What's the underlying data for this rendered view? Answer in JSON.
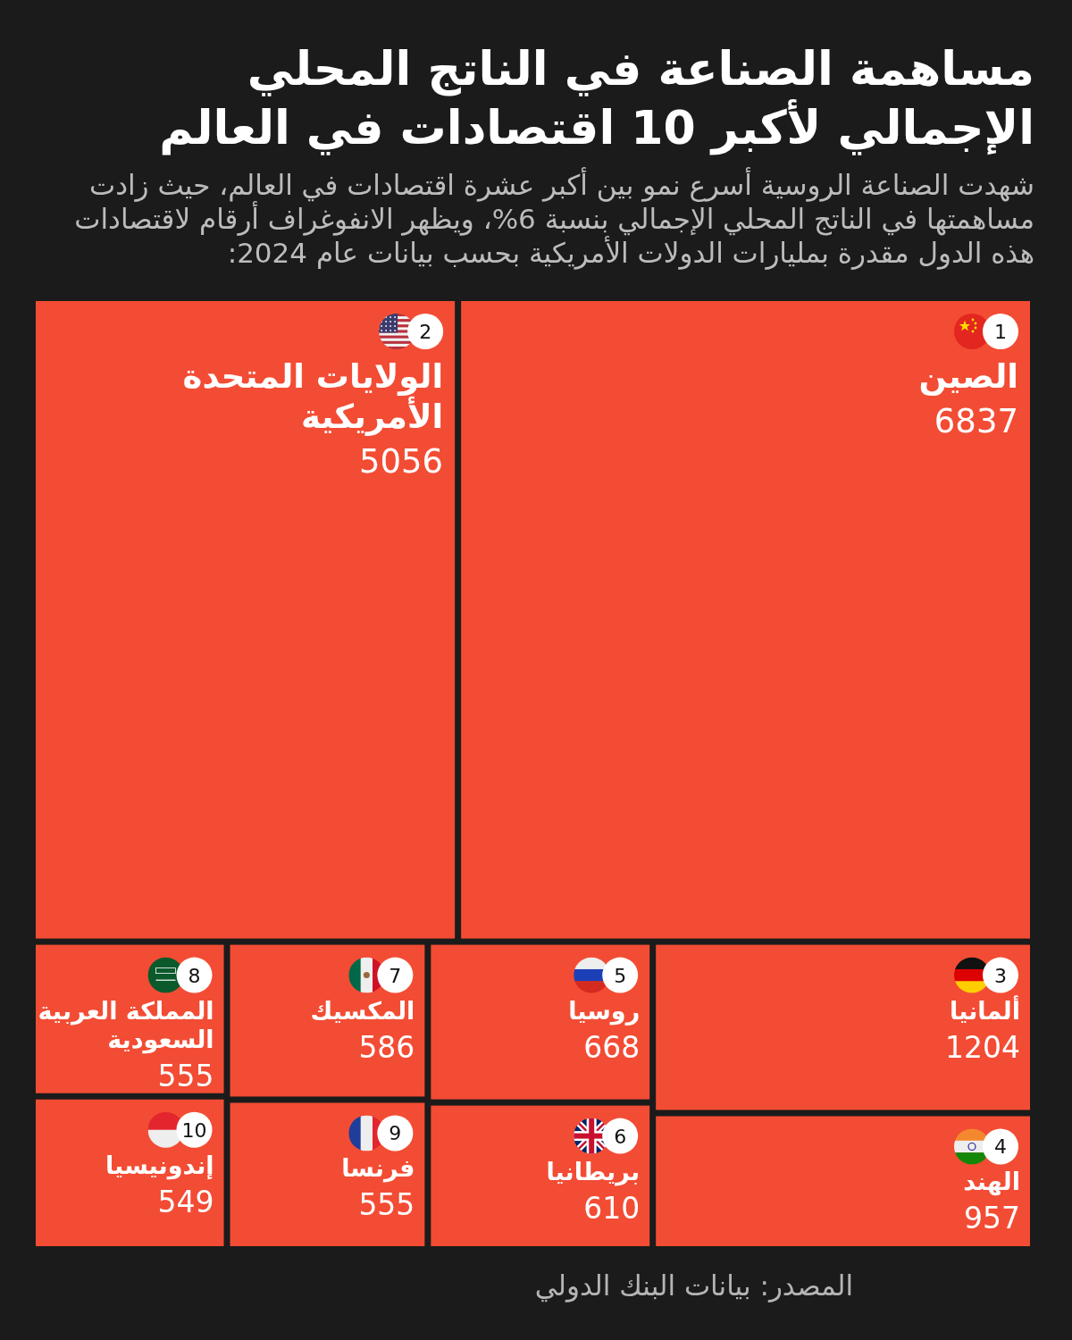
{
  "chart_data": {
    "type": "other",
    "title": "مساهمة الصناعة في الناتج المحلي الإجمالي لأكبر 10 اقتصادات في العالم",
    "subtitle": "شهدت الصناعة الروسية أسرع نمو بين أكبر عشرة اقتصادات في العالم، حيث زادت مساهمتها في الناتج المحلي الإجمالي بنسبة 6%، ويظهر الانفوغراف أرقام لاقتصادات هذه الدول مقدرة بمليارات الدولات الأمريكية بحسب بيانات عام 2024:",
    "categories": [
      "الصين",
      "الولايات المتحدة الأمريكية",
      "ألمانيا",
      "الهند",
      "روسيا",
      "بريطانيا",
      "المكسيك",
      "فرنسا",
      "المملكة العربية السعودية",
      "إندونيسيا"
    ],
    "values": [
      6837,
      5056,
      1204,
      957,
      668,
      610,
      586,
      555,
      555,
      549
    ],
    "color": "#f34c34",
    "data_labels": true,
    "annotations": [
      {
        "text": "1",
        "x": "الصين"
      },
      {
        "text": "2",
        "x": "الولايات المتحدة الأمريكية"
      },
      {
        "text": "3",
        "x": "ألمانيا"
      },
      {
        "text": "4",
        "x": "الهند"
      },
      {
        "text": "5",
        "x": "روسيا"
      },
      {
        "text": "6",
        "x": "بريطانيا"
      },
      {
        "text": "7",
        "x": "المكسيك"
      },
      {
        "text": "8",
        "x": "المملكة العربية السعودية"
      },
      {
        "text": "9",
        "x": "فرنسا"
      },
      {
        "text": "10",
        "x": "إندونيسيا"
      },
      "المصدر: بيانات البنك الدولي"
    ]
  }
}
